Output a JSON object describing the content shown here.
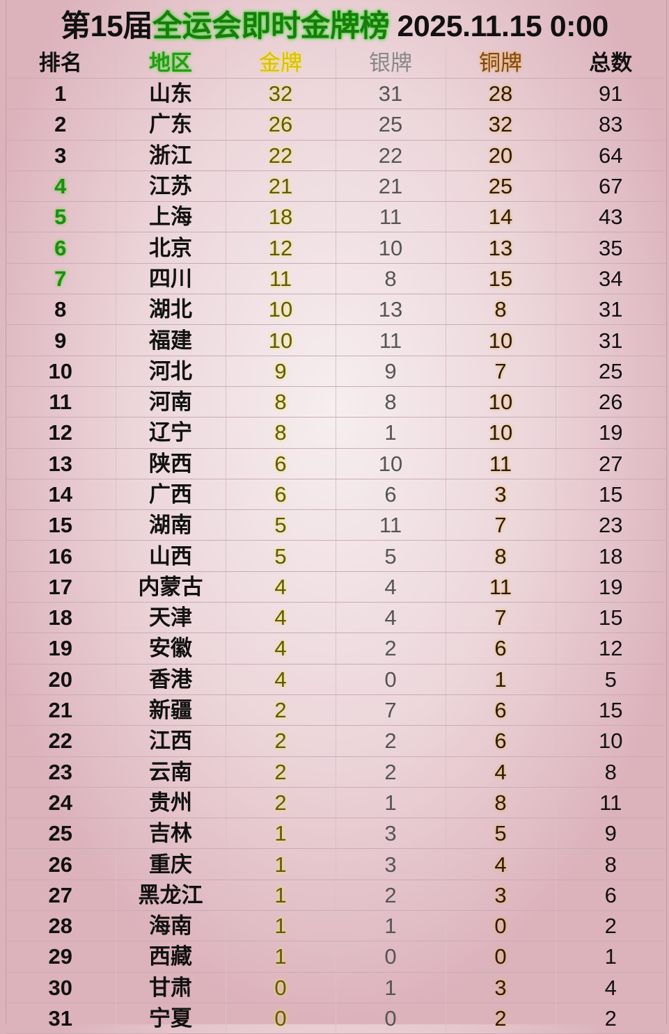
{
  "title": {
    "part1": "第15届",
    "part2": "全运会即时金牌榜",
    "part3": " 2025.11.15 0:00"
  },
  "columns": [
    "排名",
    "地区",
    "金牌",
    "银牌",
    "铜牌",
    "总数"
  ],
  "colors": {
    "gold_glow": "#f4e83a",
    "bronze_glow": "#f3b451",
    "highlight_green": "#238a12",
    "background": "#ecd6da"
  },
  "highlighted_ranks": [
    4,
    5,
    6,
    7
  ],
  "rows": [
    {
      "rank": "1",
      "region": "山东",
      "gold": "32",
      "silver": "31",
      "bronze": "28",
      "total": "91"
    },
    {
      "rank": "2",
      "region": "广东",
      "gold": "26",
      "silver": "25",
      "bronze": "32",
      "total": "83"
    },
    {
      "rank": "3",
      "region": "浙江",
      "gold": "22",
      "silver": "22",
      "bronze": "20",
      "total": "64"
    },
    {
      "rank": "4",
      "region": "江苏",
      "gold": "21",
      "silver": "21",
      "bronze": "25",
      "total": "67"
    },
    {
      "rank": "5",
      "region": "上海",
      "gold": "18",
      "silver": "11",
      "bronze": "14",
      "total": "43"
    },
    {
      "rank": "6",
      "region": "北京",
      "gold": "12",
      "silver": "10",
      "bronze": "13",
      "total": "35"
    },
    {
      "rank": "7",
      "region": "四川",
      "gold": "11",
      "silver": "8",
      "bronze": "15",
      "total": "34"
    },
    {
      "rank": "8",
      "region": "湖北",
      "gold": "10",
      "silver": "13",
      "bronze": "8",
      "total": "31"
    },
    {
      "rank": "9",
      "region": "福建",
      "gold": "10",
      "silver": "11",
      "bronze": "10",
      "total": "31"
    },
    {
      "rank": "10",
      "region": "河北",
      "gold": "9",
      "silver": "9",
      "bronze": "7",
      "total": "25"
    },
    {
      "rank": "11",
      "region": "河南",
      "gold": "8",
      "silver": "8",
      "bronze": "10",
      "total": "26"
    },
    {
      "rank": "12",
      "region": "辽宁",
      "gold": "8",
      "silver": "1",
      "bronze": "10",
      "total": "19"
    },
    {
      "rank": "13",
      "region": "陕西",
      "gold": "6",
      "silver": "10",
      "bronze": "11",
      "total": "27"
    },
    {
      "rank": "14",
      "region": "广西",
      "gold": "6",
      "silver": "6",
      "bronze": "3",
      "total": "15"
    },
    {
      "rank": "15",
      "region": "湖南",
      "gold": "5",
      "silver": "11",
      "bronze": "7",
      "total": "23"
    },
    {
      "rank": "16",
      "region": "山西",
      "gold": "5",
      "silver": "5",
      "bronze": "8",
      "total": "18"
    },
    {
      "rank": "17",
      "region": "内蒙古",
      "gold": "4",
      "silver": "4",
      "bronze": "11",
      "total": "19"
    },
    {
      "rank": "18",
      "region": "天津",
      "gold": "4",
      "silver": "4",
      "bronze": "7",
      "total": "15"
    },
    {
      "rank": "19",
      "region": "安徽",
      "gold": "4",
      "silver": "2",
      "bronze": "6",
      "total": "12"
    },
    {
      "rank": "20",
      "region": "香港",
      "gold": "4",
      "silver": "0",
      "bronze": "1",
      "total": "5"
    },
    {
      "rank": "21",
      "region": "新疆",
      "gold": "2",
      "silver": "7",
      "bronze": "6",
      "total": "15"
    },
    {
      "rank": "22",
      "region": "江西",
      "gold": "2",
      "silver": "2",
      "bronze": "6",
      "total": "10"
    },
    {
      "rank": "23",
      "region": "云南",
      "gold": "2",
      "silver": "2",
      "bronze": "4",
      "total": "8"
    },
    {
      "rank": "24",
      "region": "贵州",
      "gold": "2",
      "silver": "1",
      "bronze": "8",
      "total": "11"
    },
    {
      "rank": "25",
      "region": "吉林",
      "gold": "1",
      "silver": "3",
      "bronze": "5",
      "total": "9"
    },
    {
      "rank": "26",
      "region": "重庆",
      "gold": "1",
      "silver": "3",
      "bronze": "4",
      "total": "8"
    },
    {
      "rank": "27",
      "region": "黑龙江",
      "gold": "1",
      "silver": "2",
      "bronze": "3",
      "total": "6"
    },
    {
      "rank": "28",
      "region": "海南",
      "gold": "1",
      "silver": "1",
      "bronze": "0",
      "total": "2"
    },
    {
      "rank": "29",
      "region": "西藏",
      "gold": "1",
      "silver": "0",
      "bronze": "0",
      "total": "1"
    },
    {
      "rank": "30",
      "region": "甘肃",
      "gold": "0",
      "silver": "1",
      "bronze": "3",
      "total": "4"
    },
    {
      "rank": "31",
      "region": "宁夏",
      "gold": "0",
      "silver": "0",
      "bronze": "2",
      "total": "2"
    }
  ]
}
